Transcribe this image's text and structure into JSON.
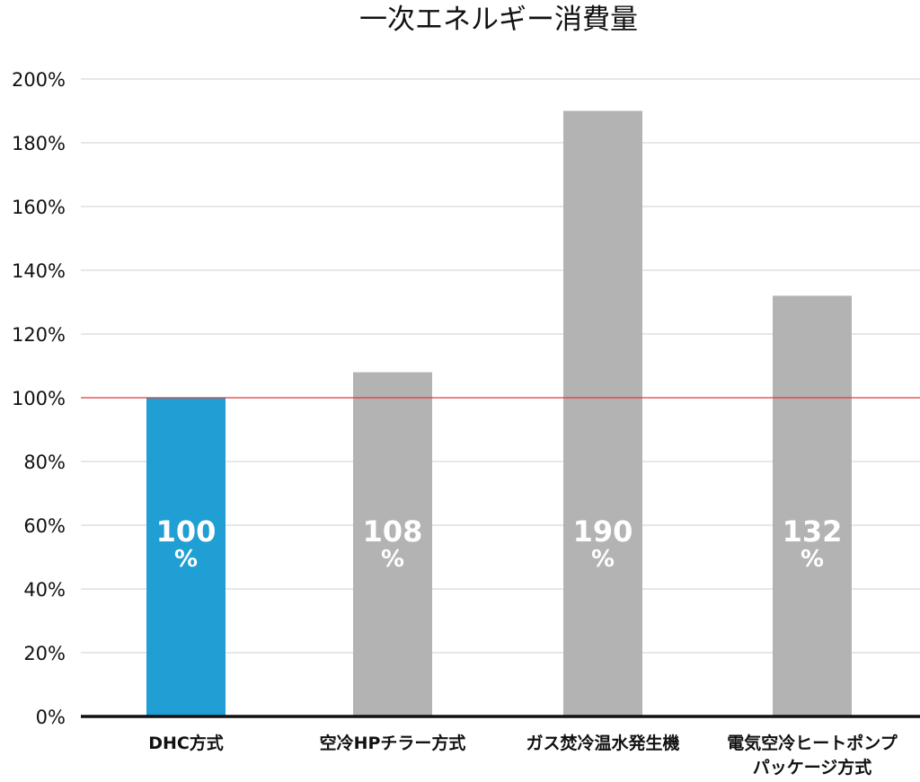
{
  "chart_data": {
    "type": "bar",
    "title": "一次エネルギー消費量",
    "xlabel": "",
    "ylabel": "",
    "ylim": [
      0,
      200
    ],
    "yticks": [
      "0%",
      "20%",
      "40%",
      "60%",
      "80%",
      "100%",
      "120%",
      "140%",
      "160%",
      "180%",
      "200%"
    ],
    "categories": [
      [
        "DHC方式"
      ],
      [
        "空冷HPチラー方式"
      ],
      [
        "ガス焚冷温水発生機"
      ],
      [
        "電気空冷ヒートポンプ",
        "パッケージ方式"
      ]
    ],
    "values": [
      100,
      108,
      190,
      132
    ],
    "data_labels": [
      "100",
      "108",
      "190",
      "132"
    ],
    "label_unit": "%",
    "bar_colors": [
      "#1f9fd3",
      "#b3b3b3",
      "#b3b3b3",
      "#b3b3b3"
    ],
    "category_label_colors": [
      "#2a9fd6",
      "#111111",
      "#111111",
      "#111111"
    ],
    "reference_line": {
      "value": 100,
      "color": "#e53935"
    },
    "grid": true,
    "legend": "none"
  }
}
